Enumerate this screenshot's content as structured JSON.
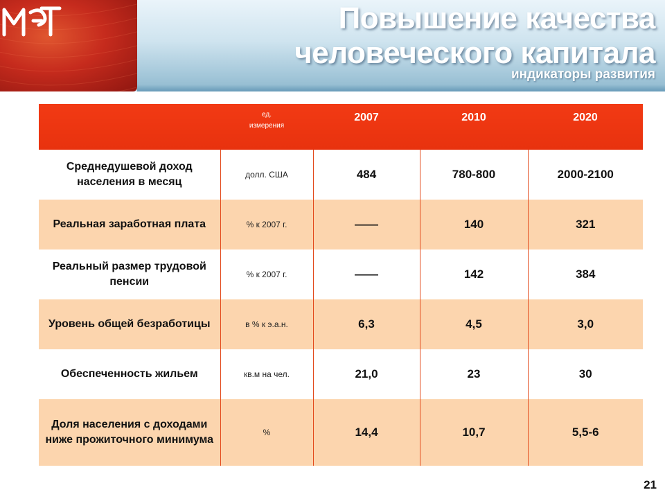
{
  "header": {
    "title_line1": "Повышение качества",
    "title_line2": "человеческого капитала",
    "subtitle": "индикаторы развития",
    "logo_text": "МЭРТ"
  },
  "colors": {
    "header_red": "#e8320e",
    "row_tint": "#fcd5ae",
    "title_band": "#8fb9cf"
  },
  "table": {
    "columns": [
      "",
      "ед. измерения",
      "2007",
      "2010",
      "2020"
    ],
    "unit_header_line1": "ед.",
    "unit_header_line2": "измерения",
    "rows": [
      {
        "name": "Среднедушевой доход населения в месяц",
        "unit": "долл. США",
        "v2007": "484",
        "v2010": "780-800",
        "v2020": "2000-2100"
      },
      {
        "name": "Реальная заработная плата",
        "unit": "% к 2007 г.",
        "v2007": "——",
        "v2010": "140",
        "v2020": "321"
      },
      {
        "name": "Реальный размер трудовой пенсии",
        "unit": "% к 2007 г.",
        "v2007": "——",
        "v2010": "142",
        "v2020": "384"
      },
      {
        "name": "Уровень общей безработицы",
        "unit": "в % к э.а.н.",
        "v2007": "6,3",
        "v2010": "4,5",
        "v2020": "3,0"
      },
      {
        "name": "Обеспеченность жильем",
        "unit": "кв.м на чел.",
        "v2007": "21,0",
        "v2010": "23",
        "v2020": "30"
      },
      {
        "name": "Доля населения с доходами ниже прожиточного минимума",
        "unit": "%",
        "v2007": "14,4",
        "v2010": "10,7",
        "v2020": "5,5-6"
      }
    ]
  },
  "page_number": "21"
}
